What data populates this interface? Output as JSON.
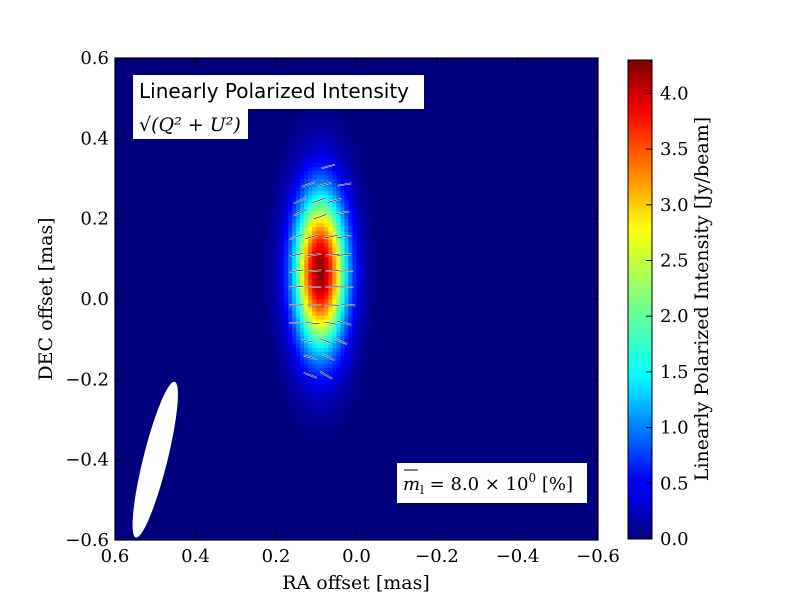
{
  "chart_data": {
    "type": "heatmap",
    "title": "Linearly Polarized Intensity",
    "subtitle": "√(Q² + U²)",
    "xlabel": "RA offset [mas]",
    "ylabel": "DEC offset [mas]",
    "xlim": [
      0.6,
      -0.6
    ],
    "ylim": [
      -0.6,
      0.6
    ],
    "x_ticks": [
      "0.6",
      "0.4",
      "0.2",
      "0.0",
      "−0.2",
      "−0.4",
      "−0.6"
    ],
    "y_ticks": [
      "−0.6",
      "−0.4",
      "−0.2",
      "0.0",
      "0.2",
      "0.4",
      "0.6"
    ],
    "colorbar": {
      "label": "Linearly Polarized Intensity [Jy/beam]",
      "min": 0.0,
      "max": 4.3,
      "colormap": "jet",
      "ticks": [
        "0.0",
        "0.5",
        "1.0",
        "1.5",
        "2.0",
        "2.5",
        "3.0",
        "3.5",
        "4.0"
      ]
    },
    "source": {
      "center_ra": 0.09,
      "center_dec": 0.07,
      "peak": 4.25,
      "sigma_major_mas": 0.135,
      "sigma_minor_mas": 0.045
    },
    "beam": {
      "ra": 0.5,
      "dec": -0.4,
      "major_mas": 0.21,
      "minor_mas": 0.06,
      "pa_deg": -14
    },
    "annotation_m": {
      "lhs": "m",
      "subscript": "l",
      "value_text": "8.0 × 10",
      "exponent": "0",
      "unit": "[%]"
    },
    "evpa_ticks": [
      {
        "ra": 0.07,
        "dec": 0.33,
        "angle": 15
      },
      {
        "ra": 0.12,
        "dec": 0.285,
        "angle": 20
      },
      {
        "ra": 0.08,
        "dec": 0.285,
        "angle": 15
      },
      {
        "ra": 0.03,
        "dec": 0.285,
        "angle": 10
      },
      {
        "ra": 0.14,
        "dec": 0.245,
        "angle": 25
      },
      {
        "ra": 0.095,
        "dec": 0.245,
        "angle": 20
      },
      {
        "ra": 0.055,
        "dec": 0.245,
        "angle": 15
      },
      {
        "ra": 0.035,
        "dec": 0.215,
        "angle": 10
      },
      {
        "ra": 0.14,
        "dec": 0.215,
        "angle": 25
      },
      {
        "ra": 0.09,
        "dec": 0.205,
        "angle": 20
      },
      {
        "ra": 0.15,
        "dec": 0.155,
        "angle": 20
      },
      {
        "ra": 0.11,
        "dec": 0.155,
        "angle": 15
      },
      {
        "ra": 0.065,
        "dec": 0.155,
        "angle": 12
      },
      {
        "ra": 0.03,
        "dec": 0.155,
        "angle": 8
      },
      {
        "ra": 0.15,
        "dec": 0.11,
        "angle": 12
      },
      {
        "ra": 0.105,
        "dec": 0.11,
        "angle": 8
      },
      {
        "ra": 0.06,
        "dec": 0.11,
        "angle": 6
      },
      {
        "ra": 0.03,
        "dec": 0.11,
        "angle": 4
      },
      {
        "ra": 0.15,
        "dec": 0.07,
        "angle": 8
      },
      {
        "ra": 0.105,
        "dec": 0.07,
        "angle": 5
      },
      {
        "ra": 0.06,
        "dec": 0.07,
        "angle": 3
      },
      {
        "ra": 0.025,
        "dec": 0.07,
        "angle": 2
      },
      {
        "ra": 0.15,
        "dec": 0.03,
        "angle": 4
      },
      {
        "ra": 0.105,
        "dec": 0.03,
        "angle": 2
      },
      {
        "ra": 0.06,
        "dec": 0.03,
        "angle": 1
      },
      {
        "ra": 0.025,
        "dec": 0.03,
        "angle": 0
      },
      {
        "ra": 0.15,
        "dec": -0.015,
        "angle": 2
      },
      {
        "ra": 0.105,
        "dec": -0.015,
        "angle": 0
      },
      {
        "ra": 0.06,
        "dec": -0.015,
        "angle": -2
      },
      {
        "ra": 0.02,
        "dec": -0.015,
        "angle": -3
      },
      {
        "ra": 0.15,
        "dec": -0.06,
        "angle": 0
      },
      {
        "ra": 0.11,
        "dec": -0.06,
        "angle": -5
      },
      {
        "ra": 0.065,
        "dec": -0.06,
        "angle": -10
      },
      {
        "ra": 0.03,
        "dec": -0.06,
        "angle": -15
      },
      {
        "ra": 0.12,
        "dec": -0.105,
        "angle": -10
      },
      {
        "ra": 0.075,
        "dec": -0.105,
        "angle": -20
      },
      {
        "ra": 0.04,
        "dec": -0.105,
        "angle": -25
      },
      {
        "ra": 0.115,
        "dec": -0.145,
        "angle": -15
      },
      {
        "ra": 0.07,
        "dec": -0.145,
        "angle": -25
      },
      {
        "ra": 0.115,
        "dec": -0.19,
        "angle": -20
      },
      {
        "ra": 0.075,
        "dec": -0.19,
        "angle": -30
      }
    ]
  }
}
